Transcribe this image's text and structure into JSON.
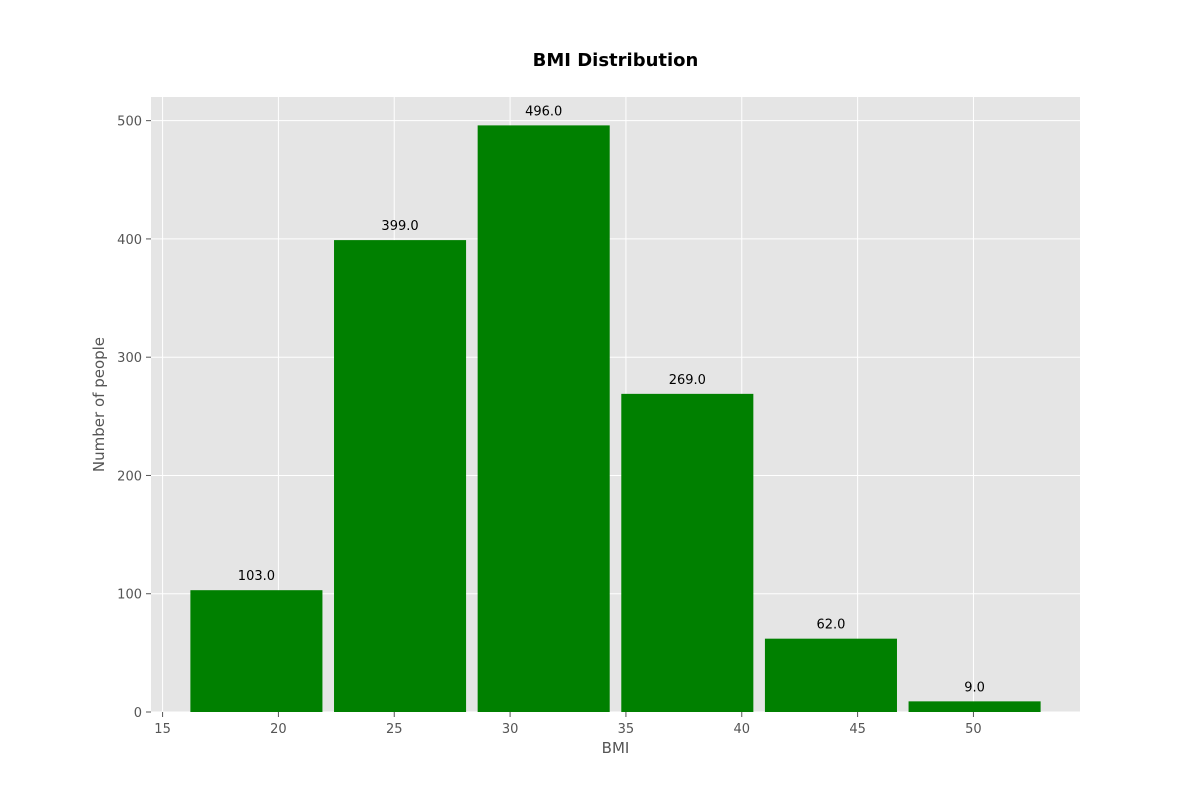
{
  "chart_data": {
    "type": "bar",
    "title": "BMI Distribution",
    "xlabel": "BMI",
    "ylabel": "Number of people",
    "bins": [
      {
        "start": 16.2,
        "end": 21.9,
        "value": 103
      },
      {
        "start": 22.4,
        "end": 28.1,
        "value": 399
      },
      {
        "start": 28.6,
        "end": 34.3,
        "value": 496
      },
      {
        "start": 34.8,
        "end": 40.5,
        "value": 269
      },
      {
        "start": 41.0,
        "end": 46.7,
        "value": 62
      },
      {
        "start": 47.2,
        "end": 52.9,
        "value": 9
      }
    ],
    "data_labels": [
      "103.0",
      "399.0",
      "496.0",
      "269.0",
      "62.0",
      "9.0"
    ],
    "xlim": [
      14.5,
      54.6
    ],
    "ylim": [
      0,
      520
    ],
    "xticks": [
      15,
      20,
      25,
      30,
      35,
      40,
      45,
      50
    ],
    "xtick_labels": [
      "15",
      "20",
      "25",
      "30",
      "35",
      "40",
      "45",
      "50"
    ],
    "yticks": [
      0,
      100,
      200,
      300,
      400,
      500
    ],
    "ytick_labels": [
      "0",
      "100",
      "200",
      "300",
      "400",
      "500"
    ],
    "grid": true,
    "colors": {
      "bar": "#008000",
      "background": "#e5e5e5",
      "grid": "#ffffff"
    }
  }
}
